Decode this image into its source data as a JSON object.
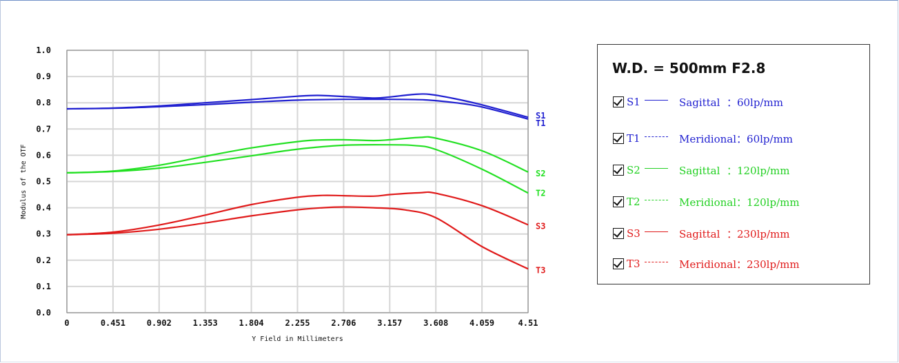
{
  "chart_data": {
    "type": "line",
    "xlabel": "Y Field in Millimeters",
    "ylabel": "Modulus of the OTF",
    "xlim": [
      0,
      4.51
    ],
    "ylim": [
      0,
      1.0
    ],
    "x_ticks": [
      "0",
      "0.451",
      "0.902",
      "1.353",
      "1.804",
      "2.255",
      "2.706",
      "3.157",
      "3.608",
      "4.059",
      "4.51"
    ],
    "y_ticks": [
      "0.0",
      "0.1",
      "0.2",
      "0.3",
      "0.4",
      "0.5",
      "0.6",
      "0.7",
      "0.8",
      "0.9",
      "1.0"
    ],
    "grid": true,
    "series": [
      {
        "name": "S1",
        "color": "#1f1fd0",
        "style": "solid",
        "points": [
          [
            0,
            0.777
          ],
          [
            0.451,
            0.78
          ],
          [
            0.902,
            0.788
          ],
          [
            1.353,
            0.8
          ],
          [
            1.804,
            0.812
          ],
          [
            2.255,
            0.825
          ],
          [
            2.45,
            0.828
          ],
          [
            2.706,
            0.824
          ],
          [
            3.0,
            0.818
          ],
          [
            3.157,
            0.822
          ],
          [
            3.4,
            0.832
          ],
          [
            3.55,
            0.832
          ],
          [
            3.8,
            0.815
          ],
          [
            4.059,
            0.792
          ],
          [
            4.51,
            0.745
          ]
        ]
      },
      {
        "name": "T1",
        "color": "#1f1fd0",
        "style": "solid",
        "points": [
          [
            0,
            0.777
          ],
          [
            0.451,
            0.779
          ],
          [
            0.902,
            0.785
          ],
          [
            1.353,
            0.793
          ],
          [
            1.804,
            0.802
          ],
          [
            2.255,
            0.81
          ],
          [
            2.706,
            0.813
          ],
          [
            3.157,
            0.813
          ],
          [
            3.5,
            0.811
          ],
          [
            3.8,
            0.8
          ],
          [
            4.059,
            0.784
          ],
          [
            4.51,
            0.738
          ]
        ]
      },
      {
        "name": "S2",
        "color": "#22e022",
        "style": "solid",
        "points": [
          [
            0,
            0.533
          ],
          [
            0.451,
            0.54
          ],
          [
            0.902,
            0.562
          ],
          [
            1.353,
            0.596
          ],
          [
            1.804,
            0.628
          ],
          [
            2.255,
            0.652
          ],
          [
            2.45,
            0.658
          ],
          [
            2.706,
            0.659
          ],
          [
            3.0,
            0.656
          ],
          [
            3.157,
            0.659
          ],
          [
            3.45,
            0.668
          ],
          [
            3.608,
            0.665
          ],
          [
            4.059,
            0.617
          ],
          [
            4.51,
            0.536
          ]
        ]
      },
      {
        "name": "T2",
        "color": "#22e022",
        "style": "solid",
        "points": [
          [
            0,
            0.533
          ],
          [
            0.451,
            0.538
          ],
          [
            0.902,
            0.551
          ],
          [
            1.353,
            0.573
          ],
          [
            1.804,
            0.598
          ],
          [
            2.255,
            0.623
          ],
          [
            2.706,
            0.638
          ],
          [
            3.157,
            0.64
          ],
          [
            3.4,
            0.637
          ],
          [
            3.608,
            0.622
          ],
          [
            4.059,
            0.547
          ],
          [
            4.51,
            0.456
          ]
        ]
      },
      {
        "name": "S3",
        "color": "#e01a1a",
        "style": "solid",
        "points": [
          [
            0,
            0.297
          ],
          [
            0.451,
            0.307
          ],
          [
            0.902,
            0.334
          ],
          [
            1.353,
            0.372
          ],
          [
            1.804,
            0.412
          ],
          [
            2.255,
            0.44
          ],
          [
            2.5,
            0.447
          ],
          [
            2.706,
            0.446
          ],
          [
            3.0,
            0.444
          ],
          [
            3.157,
            0.45
          ],
          [
            3.45,
            0.457
          ],
          [
            3.608,
            0.455
          ],
          [
            4.059,
            0.408
          ],
          [
            4.51,
            0.335
          ]
        ]
      },
      {
        "name": "T3",
        "color": "#e01a1a",
        "style": "solid",
        "points": [
          [
            0,
            0.297
          ],
          [
            0.451,
            0.303
          ],
          [
            0.902,
            0.318
          ],
          [
            1.353,
            0.342
          ],
          [
            1.804,
            0.369
          ],
          [
            2.255,
            0.392
          ],
          [
            2.5,
            0.4
          ],
          [
            2.706,
            0.403
          ],
          [
            3.0,
            0.4
          ],
          [
            3.3,
            0.392
          ],
          [
            3.608,
            0.362
          ],
          [
            4.059,
            0.252
          ],
          [
            4.51,
            0.167
          ]
        ]
      }
    ],
    "end_labels": [
      "S1",
      "T1",
      "S2",
      "T2",
      "S3",
      "T3"
    ]
  },
  "legend": {
    "title": "W.D. = 500mm F2.8",
    "rows": [
      {
        "id": "S1",
        "dash": "solid",
        "name": "Sagittal  ：60lp/mm",
        "color": "#1f1fd0"
      },
      {
        "id": "T1",
        "dash": "dashed",
        "name": "Meridional：60lp/mm",
        "color": "#1f1fd0"
      },
      {
        "id": "S2",
        "dash": "solid",
        "name": "Sagittal  ：120lp/mm",
        "color": "#22d022"
      },
      {
        "id": "T2",
        "dash": "dashed",
        "name": "Meridional：120lp/mm",
        "color": "#22d022"
      },
      {
        "id": "S3",
        "dash": "solid",
        "name": "Sagittal  ：230lp/mm",
        "color": "#e01a1a"
      },
      {
        "id": "T3",
        "dash": "dashed",
        "name": "Meridional：230lp/mm",
        "color": "#e01a1a"
      }
    ]
  }
}
